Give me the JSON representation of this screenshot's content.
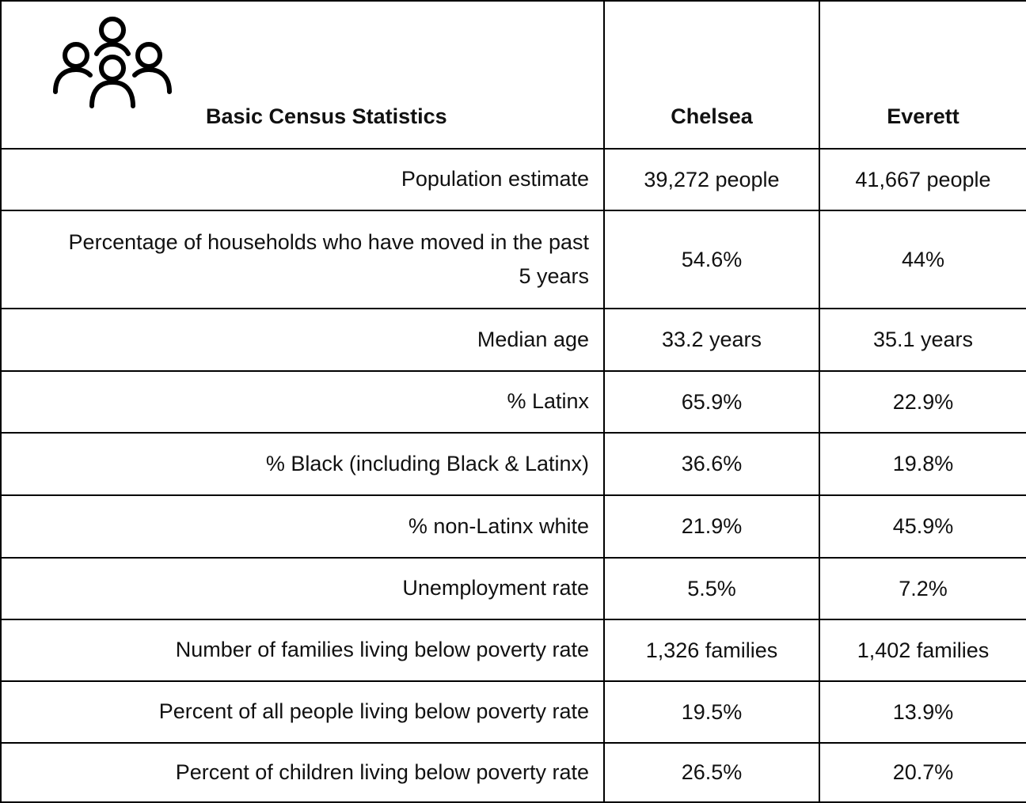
{
  "header": {
    "title": "Basic Census Statistics",
    "columns": [
      "Chelsea",
      "Everett"
    ]
  },
  "table": {
    "rows": [
      [
        "Population estimate",
        "39,272 people",
        "41,667 people"
      ],
      [
        "Percentage of households who have moved in the past 5 years",
        "54.6%",
        "44%"
      ],
      [
        "Median age",
        "33.2 years",
        "35.1 years"
      ],
      [
        "% Latinx",
        "65.9%",
        "22.9%"
      ],
      [
        "% Black (including Black & Latinx)",
        "36.6%",
        "19.8%"
      ],
      [
        "% non-Latinx white",
        "21.9%",
        "45.9%"
      ],
      [
        "Unemployment rate",
        "5.5%",
        "7.2%"
      ],
      [
        "Number of families living below poverty rate",
        "1,326 families",
        "1,402 families"
      ],
      [
        "Percent of all people living below poverty rate",
        "19.5%",
        "13.9%"
      ],
      [
        "Percent of children living below poverty rate",
        "26.5%",
        "20.7%"
      ]
    ]
  }
}
